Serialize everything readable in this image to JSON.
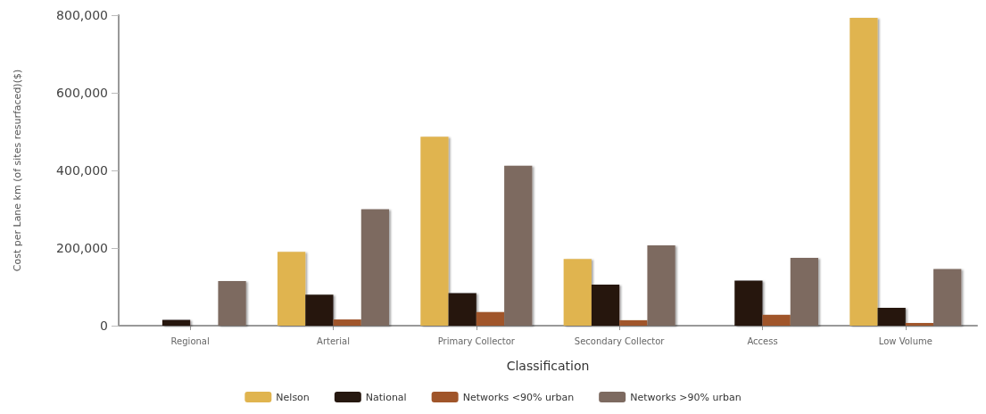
{
  "chart_data": {
    "type": "bar",
    "xlabel": "Classification",
    "ylabel": "Cost per Lane km (of sites resurfaced)($)",
    "categories": [
      "Regional",
      "Arterial",
      "Primary Collector",
      "Secondary Collector",
      "Access",
      "Low Volume"
    ],
    "series": [
      {
        "name": "Nelson",
        "color": "#e0b44f",
        "values": [
          null,
          190000,
          487000,
          172000,
          null,
          793000
        ]
      },
      {
        "name": "National",
        "color": "#261810",
        "values": [
          15000,
          80000,
          84000,
          106000,
          116000,
          46000
        ]
      },
      {
        "name": "Networks <90% urban",
        "color": "#a0552a",
        "values": [
          null,
          16000,
          35000,
          14000,
          28000,
          7000
        ]
      },
      {
        "name": "Networks >90% urban",
        "color": "#7d6a60",
        "values": [
          115000,
          300000,
          412000,
          207000,
          175000,
          146000
        ]
      }
    ],
    "ylim": [
      0,
      800000
    ],
    "yticks": [
      0,
      {
        "value": 200000,
        "label": "200,000"
      },
      {
        "value": 400000,
        "label": "400,000"
      },
      {
        "value": 600000,
        "label": "600,000"
      },
      {
        "value": 800000,
        "label": "800,000"
      }
    ],
    "grid": false,
    "legend": "bottom"
  }
}
